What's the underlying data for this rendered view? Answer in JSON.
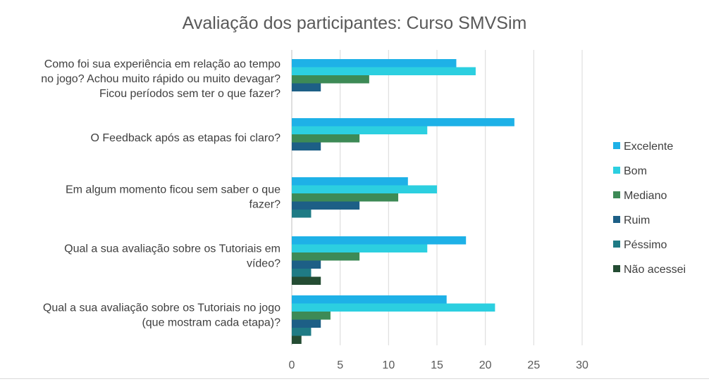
{
  "chart_data": {
    "type": "bar",
    "orientation": "horizontal",
    "title": "Avaliação dos participantes: Curso SMVSim",
    "xlabel": "",
    "ylabel": "",
    "xlim": [
      0,
      30
    ],
    "x_ticks": [
      "0",
      "5",
      "10",
      "15",
      "20",
      "25",
      "30"
    ],
    "grid": true,
    "legend_position": "right",
    "categories": [
      [
        "Como foi sua experiência em relação ao tempo",
        "no jogo? Achou muito rápido ou muito devagar?",
        "Ficou períodos sem ter o que fazer?"
      ],
      [
        "O Feedback após as etapas foi claro?"
      ],
      [
        "Em algum momento ficou sem saber o que",
        "fazer?"
      ],
      [
        "Qual a sua avaliação sobre os Tutoriais em",
        "vídeo?"
      ],
      [
        "Qual a sua avaliação sobre os Tutoriais no jogo",
        "(que mostram cada etapa)?"
      ]
    ],
    "series": [
      {
        "name": "Excelente",
        "color": "#1eb1e7",
        "values": [
          17,
          23,
          12,
          18,
          16
        ]
      },
      {
        "name": "Bom",
        "color": "#2ccfe0",
        "values": [
          19,
          14,
          15,
          14,
          21
        ]
      },
      {
        "name": "Mediano",
        "color": "#3d8a56",
        "values": [
          8,
          7,
          11,
          7,
          4
        ]
      },
      {
        "name": "Ruim",
        "color": "#1d5f86",
        "values": [
          3,
          3,
          7,
          3,
          3
        ]
      },
      {
        "name": "Péssimo",
        "color": "#1f7b85",
        "values": [
          0,
          0,
          2,
          2,
          2
        ]
      },
      {
        "name": "Não acessei",
        "color": "#244c33",
        "values": [
          0,
          0,
          0,
          3,
          1
        ]
      }
    ]
  }
}
